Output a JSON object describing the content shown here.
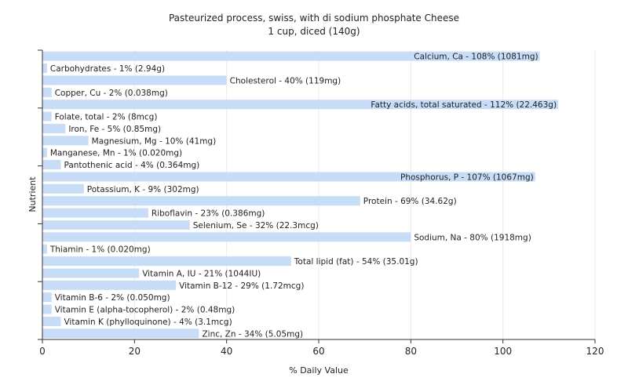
{
  "chart_data": {
    "type": "bar",
    "orientation": "horizontal",
    "title": "Pasteurized process, swiss, with di sodium phosphate Cheese",
    "subtitle": "1 cup, diced (140g)",
    "xlabel": "% Daily Value",
    "ylabel": "Nutrient",
    "xlim": [
      0,
      120
    ],
    "xticks": [
      0,
      20,
      40,
      60,
      80,
      100,
      120
    ],
    "grid": true,
    "colors": {
      "bar": "#c6dcf7",
      "gridline": "#ebebeb",
      "axis": "#333333"
    },
    "bars": [
      {
        "value": 108,
        "label": "Calcium, Ca - 108% (1081mg)"
      },
      {
        "value": 1,
        "label": "Carbohydrates - 1% (2.94g)"
      },
      {
        "value": 40,
        "label": "Cholesterol - 40% (119mg)"
      },
      {
        "value": 2,
        "label": "Copper, Cu - 2% (0.038mg)"
      },
      {
        "value": 112,
        "label": "Fatty acids, total saturated - 112% (22.463g)"
      },
      {
        "value": 2,
        "label": "Folate, total - 2% (8mcg)"
      },
      {
        "value": 5,
        "label": "Iron, Fe - 5% (0.85mg)"
      },
      {
        "value": 10,
        "label": "Magnesium, Mg - 10% (41mg)"
      },
      {
        "value": 1,
        "label": "Manganese, Mn - 1% (0.020mg)"
      },
      {
        "value": 4,
        "label": "Pantothenic acid - 4% (0.364mg)"
      },
      {
        "value": 107,
        "label": "Phosphorus, P - 107% (1067mg)"
      },
      {
        "value": 9,
        "label": "Potassium, K - 9% (302mg)"
      },
      {
        "value": 69,
        "label": "Protein - 69% (34.62g)"
      },
      {
        "value": 23,
        "label": "Riboflavin - 23% (0.386mg)"
      },
      {
        "value": 32,
        "label": "Selenium, Se - 32% (22.3mcg)"
      },
      {
        "value": 80,
        "label": "Sodium, Na - 80% (1918mg)"
      },
      {
        "value": 1,
        "label": "Thiamin - 1% (0.020mg)"
      },
      {
        "value": 54,
        "label": "Total lipid (fat) - 54% (35.01g)"
      },
      {
        "value": 21,
        "label": "Vitamin A, IU - 21% (1044IU)"
      },
      {
        "value": 29,
        "label": "Vitamin B-12 - 29% (1.72mcg)"
      },
      {
        "value": 2,
        "label": "Vitamin B-6 - 2% (0.050mg)"
      },
      {
        "value": 2,
        "label": "Vitamin E (alpha-tocopherol) - 2% (0.48mg)"
      },
      {
        "value": 4,
        "label": "Vitamin K (phylloquinone) - 4% (3.1mcg)"
      },
      {
        "value": 34,
        "label": "Zinc, Zn - 34% (5.05mg)"
      }
    ]
  }
}
